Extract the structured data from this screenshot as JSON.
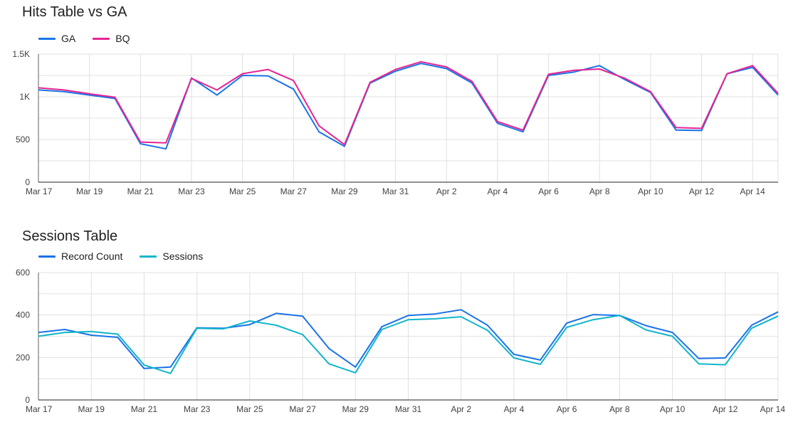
{
  "chart_data": [
    {
      "type": "line",
      "title": "Hits Table vs GA",
      "x": [
        "Mar 17",
        "Mar 18",
        "Mar 19",
        "Mar 20",
        "Mar 21",
        "Mar 22",
        "Mar 23",
        "Mar 24",
        "Mar 25",
        "Mar 26",
        "Mar 27",
        "Mar 28",
        "Mar 29",
        "Mar 30",
        "Mar 31",
        "Apr 1",
        "Apr 2",
        "Apr 3",
        "Apr 4",
        "Apr 5",
        "Apr 6",
        "Apr 7",
        "Apr 8",
        "Apr 9",
        "Apr 10",
        "Apr 11",
        "Apr 12",
        "Apr 13",
        "Apr 14",
        "Apr 15"
      ],
      "x_tick_labels": [
        "Mar 17",
        "Mar 19",
        "Mar 21",
        "Mar 23",
        "Mar 25",
        "Mar 27",
        "Mar 29",
        "Mar 31",
        "Apr 2",
        "Apr 4",
        "Apr 6",
        "Apr 8",
        "Apr 10",
        "Apr 12",
        "Apr 14"
      ],
      "y_tick_labels": [
        "0",
        "500",
        "1K",
        "1.5K"
      ],
      "y_ticks": [
        0,
        500,
        1000,
        1500
      ],
      "ylim": [
        0,
        1500
      ],
      "grid": true,
      "legend_position": "top-left",
      "series": [
        {
          "name": "GA",
          "color": "#1a73e8",
          "values": [
            1080,
            1060,
            1020,
            980,
            450,
            390,
            1220,
            1020,
            1250,
            1245,
            1090,
            590,
            420,
            1160,
            1300,
            1390,
            1330,
            1160,
            690,
            590,
            1250,
            1290,
            1365,
            1200,
            1050,
            610,
            605,
            1270,
            1345,
            1020
          ]
        },
        {
          "name": "BQ",
          "color": "#e52592",
          "values": [
            1105,
            1080,
            1035,
            995,
            470,
            460,
            1215,
            1080,
            1270,
            1320,
            1190,
            660,
            440,
            1170,
            1320,
            1410,
            1350,
            1180,
            710,
            610,
            1265,
            1310,
            1325,
            1215,
            1060,
            640,
            630,
            1270,
            1365,
            1040
          ]
        }
      ]
    },
    {
      "type": "line",
      "title": "Sessions Table",
      "x": [
        "Mar 17",
        "Mar 18",
        "Mar 19",
        "Mar 20",
        "Mar 21",
        "Mar 22",
        "Mar 23",
        "Mar 24",
        "Mar 25",
        "Mar 26",
        "Mar 27",
        "Mar 28",
        "Mar 29",
        "Mar 30",
        "Mar 31",
        "Apr 1",
        "Apr 2",
        "Apr 3",
        "Apr 4",
        "Apr 5",
        "Apr 6",
        "Apr 7",
        "Apr 8",
        "Apr 9",
        "Apr 10",
        "Apr 11",
        "Apr 12",
        "Apr 13",
        "Apr 14"
      ],
      "x_tick_labels": [
        "Mar 17",
        "Mar 19",
        "Mar 21",
        "Mar 23",
        "Mar 25",
        "Mar 27",
        "Mar 29",
        "Mar 31",
        "Apr 2",
        "Apr 4",
        "Apr 6",
        "Apr 8",
        "Apr 10",
        "Apr 12",
        "Apr 14"
      ],
      "y_tick_labels": [
        "0",
        "200",
        "400",
        "600"
      ],
      "y_ticks": [
        0,
        200,
        400,
        600
      ],
      "ylim": [
        0,
        600
      ],
      "grid": true,
      "legend_position": "top-left",
      "series": [
        {
          "name": "Record Count",
          "color": "#1a73e8",
          "values": [
            318,
            332,
            305,
            295,
            148,
            155,
            340,
            338,
            355,
            408,
            395,
            242,
            155,
            345,
            398,
            405,
            425,
            352,
            215,
            188,
            362,
            402,
            398,
            350,
            318,
            195,
            198,
            352,
            415
          ]
        },
        {
          "name": "Sessions",
          "color": "#12b5cb",
          "values": [
            300,
            318,
            322,
            310,
            165,
            125,
            338,
            335,
            372,
            352,
            308,
            170,
            128,
            332,
            378,
            382,
            392,
            328,
            198,
            168,
            342,
            378,
            398,
            330,
            300,
            170,
            166,
            338,
            395
          ]
        }
      ]
    }
  ]
}
